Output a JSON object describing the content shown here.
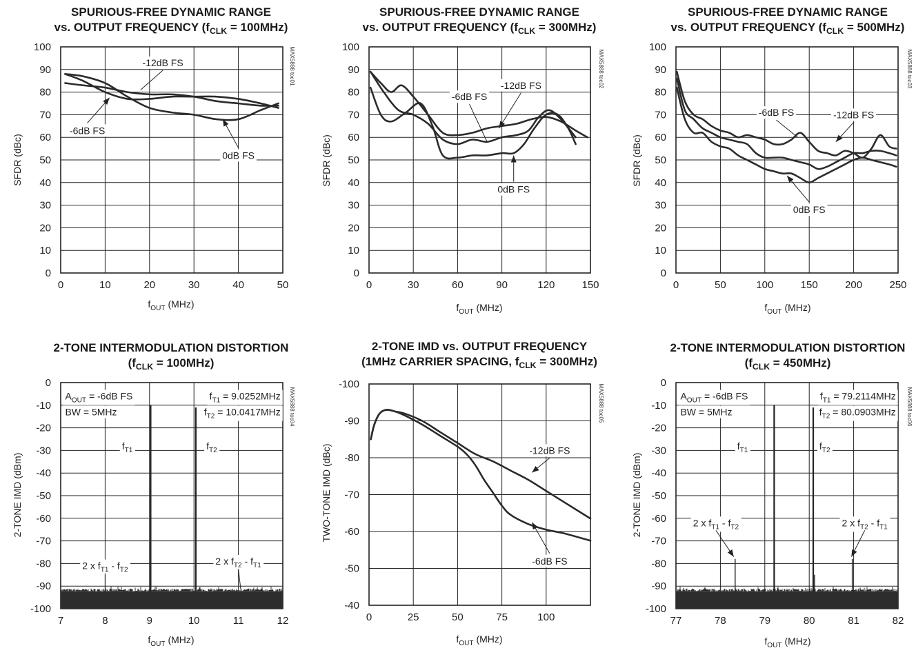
{
  "chart_data": [
    {
      "type": "line",
      "title": [
        "SPURIOUS-FREE DYNAMIC RANGE",
        "vs. OUTPUT FREQUENCY (fCLK = 100MHz)"
      ],
      "xlabel": "fOUT (MHz)",
      "ylabel": "SFDR (dBc)",
      "xlim": [
        0,
        50
      ],
      "ylim": [
        0,
        100
      ],
      "xticks": [
        0,
        10,
        20,
        30,
        40,
        50
      ],
      "yticks": [
        0,
        10,
        20,
        30,
        40,
        50,
        60,
        70,
        80,
        90,
        100
      ],
      "code": "MAX5888 toc01",
      "grid": true,
      "series": [
        {
          "name": "0dB FS",
          "x": [
            1,
            5,
            10,
            15,
            20,
            25,
            30,
            35,
            40,
            45,
            49
          ],
          "y": [
            88,
            87,
            84,
            78,
            73,
            71,
            70,
            68,
            68,
            72,
            75
          ]
        },
        {
          "name": "-6dB FS",
          "x": [
            1,
            5,
            10,
            15,
            20,
            25,
            30,
            35,
            40,
            45,
            49
          ],
          "y": [
            88,
            85,
            80,
            77,
            77,
            78,
            78,
            78,
            77,
            75,
            73
          ]
        },
        {
          "name": "-12dB FS",
          "x": [
            1,
            5,
            10,
            15,
            20,
            25,
            30,
            35,
            40,
            45,
            49
          ],
          "y": [
            84,
            83,
            82,
            80,
            79,
            79,
            78,
            76,
            75,
            74,
            74
          ]
        }
      ],
      "annotations": [
        {
          "text": "-12dB FS",
          "x": 23,
          "y": 93
        },
        {
          "text": "-6dB FS",
          "x": 6,
          "y": 63
        },
        {
          "text": "0dB FS",
          "x": 40,
          "y": 52
        }
      ]
    },
    {
      "type": "line",
      "title": [
        "SPURIOUS-FREE DYNAMIC RANGE",
        "vs. OUTPUT FREQUENCY (fCLK = 300MHz)"
      ],
      "xlabel": "fOUT (MHz)",
      "ylabel": "SFDR (dBc)",
      "xlim": [
        0,
        150
      ],
      "ylim": [
        0,
        100
      ],
      "xticks": [
        0,
        30,
        60,
        90,
        120,
        150
      ],
      "yticks": [
        0,
        10,
        20,
        30,
        40,
        50,
        60,
        70,
        80,
        90,
        100
      ],
      "code": "MAX5888 toc02",
      "grid": true,
      "series": [
        {
          "name": "0dB FS",
          "x": [
            1,
            8,
            15,
            25,
            35,
            43,
            50,
            60,
            70,
            80,
            90,
            98,
            105,
            112,
            120,
            128,
            135,
            140
          ],
          "y": [
            82,
            70,
            67,
            71,
            75,
            65,
            52,
            51,
            52,
            52,
            53,
            53,
            57,
            64,
            70,
            70,
            64,
            57
          ]
        },
        {
          "name": "-6dB FS",
          "x": [
            1,
            10,
            20,
            30,
            40,
            50,
            60,
            70,
            80,
            90,
            100,
            108,
            115,
            122,
            130,
            140
          ],
          "y": [
            89,
            80,
            72,
            70,
            66,
            59,
            57,
            59,
            58,
            60,
            61,
            63,
            69,
            72,
            68,
            60
          ]
        },
        {
          "name": "-12dB FS",
          "x": [
            1,
            8,
            15,
            22,
            30,
            40,
            50,
            60,
            70,
            80,
            90,
            100,
            110,
            120,
            130,
            140,
            148
          ],
          "y": [
            89,
            84,
            80,
            83,
            78,
            70,
            62,
            61,
            62,
            64,
            65,
            66,
            68,
            69,
            67,
            63,
            60
          ]
        }
      ],
      "annotations": [
        {
          "text": "-12dB FS",
          "x": 103,
          "y": 83
        },
        {
          "text": "-6dB FS",
          "x": 68,
          "y": 78
        },
        {
          "text": "0dB FS",
          "x": 98,
          "y": 37
        }
      ]
    },
    {
      "type": "line",
      "title": [
        "SPURIOUS-FREE DYNAMIC RANGE",
        "vs. OUTPUT FREQUENCY (fCLK = 500MHz)"
      ],
      "xlabel": "fOUT (MHz)",
      "ylabel": "SFDR (dBc)",
      "xlim": [
        0,
        250
      ],
      "ylim": [
        0,
        100
      ],
      "xticks": [
        0,
        50,
        100,
        150,
        200,
        250
      ],
      "yticks": [
        0,
        10,
        20,
        30,
        40,
        50,
        60,
        70,
        80,
        90,
        100
      ],
      "code": "MAX5888 toc03",
      "grid": true,
      "series": [
        {
          "name": "0dB FS",
          "x": [
            1,
            10,
            20,
            30,
            40,
            50,
            60,
            70,
            80,
            90,
            100,
            110,
            120,
            130,
            140,
            150,
            160,
            170,
            180,
            190,
            200,
            210,
            220,
            230,
            240,
            248
          ],
          "y": [
            82,
            68,
            62,
            62,
            58,
            56,
            55,
            52,
            50,
            48,
            46,
            45,
            44,
            44,
            42,
            40,
            42,
            44,
            46,
            48,
            50,
            51,
            50,
            49,
            48,
            47
          ]
        },
        {
          "name": "-6dB FS",
          "x": [
            1,
            10,
            20,
            30,
            40,
            50,
            60,
            70,
            80,
            90,
            100,
            110,
            120,
            130,
            140,
            150,
            160,
            170,
            180,
            190,
            200,
            210,
            220,
            230,
            240,
            248
          ],
          "y": [
            86,
            72,
            68,
            64,
            62,
            60,
            59,
            58,
            57,
            53,
            51,
            51,
            51,
            50,
            49,
            48,
            46,
            47,
            49,
            51,
            53,
            53,
            54,
            54,
            53,
            52
          ]
        },
        {
          "name": "-12dB FS",
          "x": [
            1,
            10,
            20,
            30,
            40,
            50,
            60,
            70,
            80,
            90,
            100,
            110,
            120,
            130,
            140,
            150,
            160,
            170,
            180,
            190,
            200,
            210,
            220,
            230,
            240,
            248
          ],
          "y": [
            89,
            76,
            70,
            68,
            65,
            63,
            62,
            60,
            61,
            60,
            59,
            57,
            57,
            59,
            62,
            58,
            54,
            53,
            52,
            54,
            53,
            51,
            55,
            61,
            56,
            55
          ]
        }
      ],
      "annotations": [
        {
          "text": "-12dB FS",
          "x": 200,
          "y": 70
        },
        {
          "text": "-6dB FS",
          "x": 113,
          "y": 71
        },
        {
          "text": "0dB FS",
          "x": 150,
          "y": 28
        }
      ]
    },
    {
      "type": "line",
      "title": [
        "2-TONE INTERMODULATION DISTORTION",
        "(fCLK = 100MHz)"
      ],
      "xlabel": "fOUT (MHz)",
      "ylabel": "2-TONE IMD  (dBm)",
      "xlim": [
        7,
        12
      ],
      "ylim": [
        -100,
        0
      ],
      "xticks": [
        7,
        8,
        9,
        10,
        11,
        12
      ],
      "yticks": [
        0,
        -10,
        -20,
        -30,
        -40,
        -50,
        -60,
        -70,
        -80,
        -90,
        -100
      ],
      "code": "MAX5888 toc04",
      "grid": true,
      "noise_floor_dbm": -92,
      "series": [
        {
          "name": "fT1",
          "x": [
            9.0252
          ],
          "y": [
            -10
          ]
        },
        {
          "name": "fT2",
          "x": [
            10.0417
          ],
          "y": [
            -11
          ]
        },
        {
          "name": "2 x fT1 - fT2",
          "x": [
            8.0087
          ],
          "y": [
            -91
          ]
        },
        {
          "name": "2 x fT2 - fT1",
          "x": [
            11.0582
          ],
          "y": [
            -91
          ]
        }
      ],
      "annotations": [
        {
          "text": "AOUT = -6dB FS",
          "x": 7.1,
          "y": -6
        },
        {
          "text": "BW = 5MHz",
          "x": 7.1,
          "y": -13
        },
        {
          "text": "fT1  = 9.0252MHz",
          "x": 11.95,
          "y": -6
        },
        {
          "text": "fT2  = 10.0417MHz",
          "x": 11.95,
          "y": -13
        },
        {
          "text": "fT1",
          "x": 8.5,
          "y": -28
        },
        {
          "text": "fT2",
          "x": 10.4,
          "y": -28
        },
        {
          "text": "2 x fT1 - fT2",
          "x": 8.0,
          "y": -81
        },
        {
          "text": "2 x fT2 - fT1",
          "x": 11.0,
          "y": -79
        }
      ]
    },
    {
      "type": "line",
      "title": [
        "2-TONE IMD vs. OUTPUT FREQUENCY",
        "(1MHz CARRIER SPACING, fCLK = 300MHz)"
      ],
      "xlabel": "fOUT (MHz)",
      "ylabel": "TWO-TONE IMD (dBc)",
      "xlim": [
        0,
        125
      ],
      "ylim": [
        -100,
        -40
      ],
      "y_inverted": true,
      "xticks": [
        0,
        25,
        50,
        75,
        100
      ],
      "yticks": [
        -100,
        -90,
        -80,
        -70,
        -60,
        -50,
        -40
      ],
      "code": "MAX5888 toc05",
      "grid": true,
      "series": [
        {
          "name": "-12dB FS",
          "x": [
            1,
            3,
            6,
            10,
            15,
            20,
            30,
            40,
            50,
            60,
            70,
            80,
            90,
            100,
            110,
            125
          ],
          "y": [
            -85,
            -89,
            -92,
            -93,
            -92.5,
            -92,
            -90,
            -87,
            -84,
            -81,
            -79,
            -76.5,
            -74,
            -71,
            -68,
            -63.5
          ]
        },
        {
          "name": "-6dB FS",
          "x": [
            1,
            3,
            6,
            10,
            15,
            20,
            30,
            40,
            50,
            55,
            60,
            65,
            70,
            75,
            80,
            90,
            100,
            110,
            125
          ],
          "y": [
            -85,
            -89,
            -92,
            -93,
            -92.5,
            -91.5,
            -89,
            -86,
            -83,
            -81,
            -78,
            -74,
            -70.5,
            -67,
            -64.5,
            -62,
            -60.5,
            -59.5,
            -57.5
          ]
        }
      ],
      "annotations": [
        {
          "text": "-12dB FS",
          "x": 102,
          "y": -82
        },
        {
          "text": "-6dB FS",
          "x": 102,
          "y": -52
        }
      ]
    },
    {
      "type": "line",
      "title": [
        "2-TONE INTERMODULATION DISTORTION",
        "(fCLK = 450MHz)"
      ],
      "xlabel": "fOUT (MHz)",
      "ylabel": "2-TONE IMD  (dBm)",
      "xlim": [
        77,
        82
      ],
      "ylim": [
        -100,
        0
      ],
      "xticks": [
        77,
        78,
        79,
        80,
        81,
        82
      ],
      "yticks": [
        0,
        -10,
        -20,
        -30,
        -40,
        -50,
        -60,
        -70,
        -80,
        -90,
        -100
      ],
      "code": "MAX5888 toc06",
      "grid": true,
      "noise_floor_dbm": -92,
      "series": [
        {
          "name": "fT1",
          "x": [
            79.2114
          ],
          "y": [
            -10
          ]
        },
        {
          "name": "fT2",
          "x": [
            80.0903
          ],
          "y": [
            -11
          ]
        },
        {
          "name": "2 x fT1 - fT2",
          "x": [
            78.3325
          ],
          "y": [
            -78
          ]
        },
        {
          "name": "2 x fT2 - fT1",
          "x": [
            80.9692
          ],
          "y": [
            -78
          ]
        }
      ],
      "annotations": [
        {
          "text": "AOUT = -6dB FS",
          "x": 77.1,
          "y": -6
        },
        {
          "text": "BW = 5MHz",
          "x": 77.1,
          "y": -13
        },
        {
          "text": "fT1 = 79.2114MHz",
          "x": 81.95,
          "y": -6
        },
        {
          "text": "fT2 = 80.0903MHz",
          "x": 81.95,
          "y": -13
        },
        {
          "text": "fT1",
          "x": 78.5,
          "y": -28
        },
        {
          "text": "fT2",
          "x": 80.35,
          "y": -28
        },
        {
          "text": "2 x fT1 - fT2",
          "x": 77.9,
          "y": -62
        },
        {
          "text": "2 x fT2 - fT1",
          "x": 81.25,
          "y": -62
        }
      ]
    }
  ]
}
